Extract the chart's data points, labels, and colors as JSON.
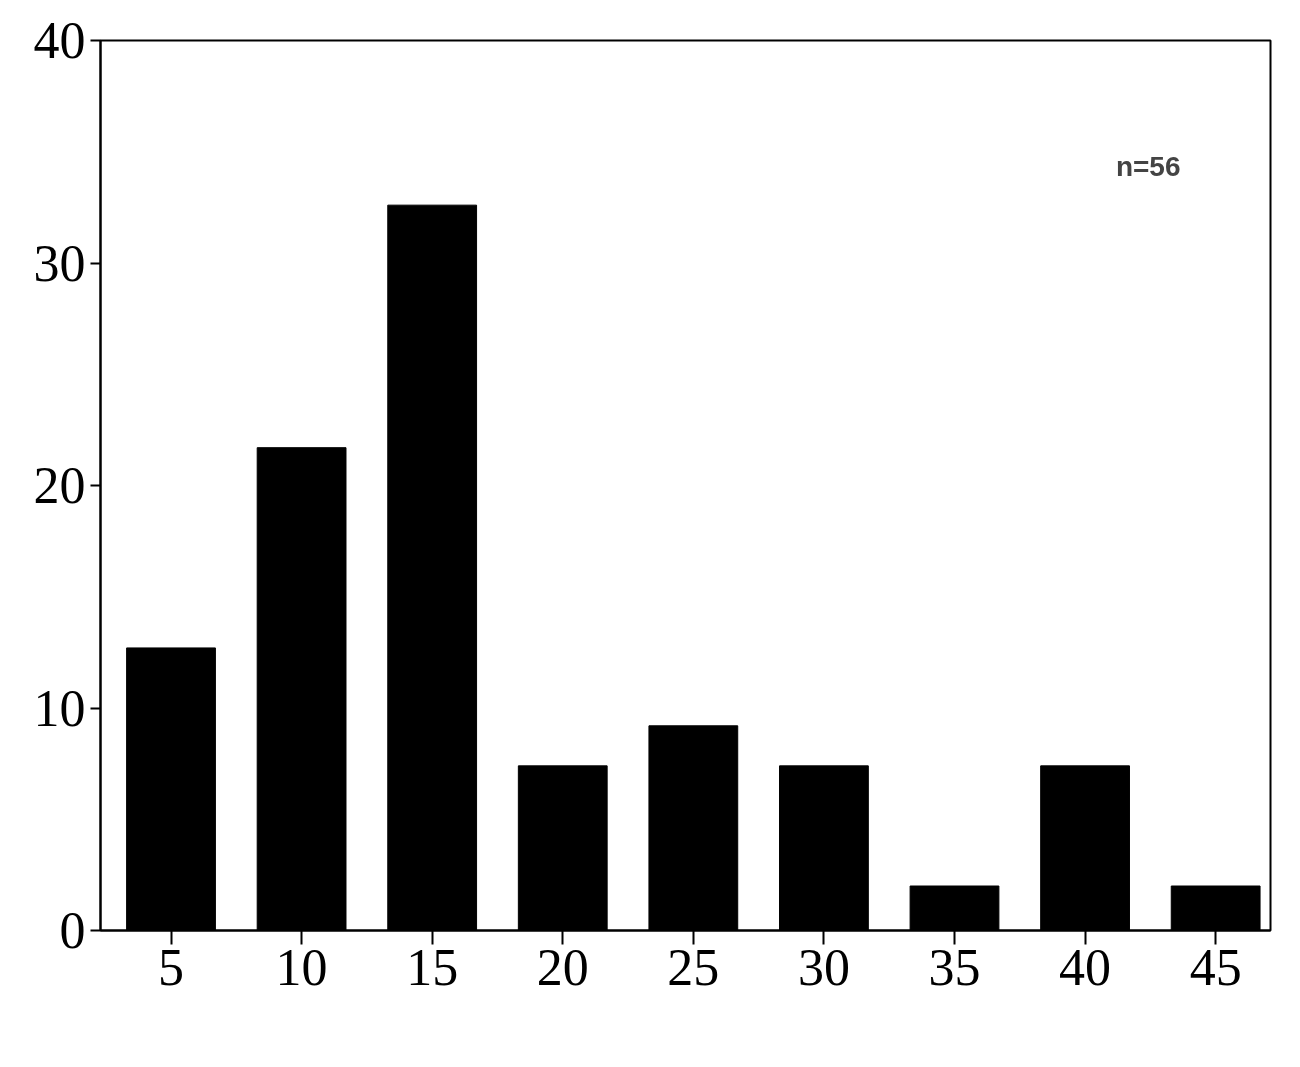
{
  "chart_data": {
    "type": "bar",
    "x": [
      5,
      10,
      15,
      20,
      25,
      30,
      35,
      40,
      45
    ],
    "values": [
      12.7,
      21.7,
      32.6,
      7.4,
      9.2,
      7.4,
      2.0,
      7.4,
      2.0
    ],
    "color": "#000000",
    "xlim": [
      2.3,
      47.1
    ],
    "ylim": [
      0,
      40
    ],
    "xticks": [
      5,
      10,
      15,
      20,
      25,
      30,
      35,
      40,
      45
    ],
    "yticks": [
      0,
      10,
      20,
      30,
      40
    ],
    "grid": false,
    "annotations": [
      "n=56"
    ]
  }
}
